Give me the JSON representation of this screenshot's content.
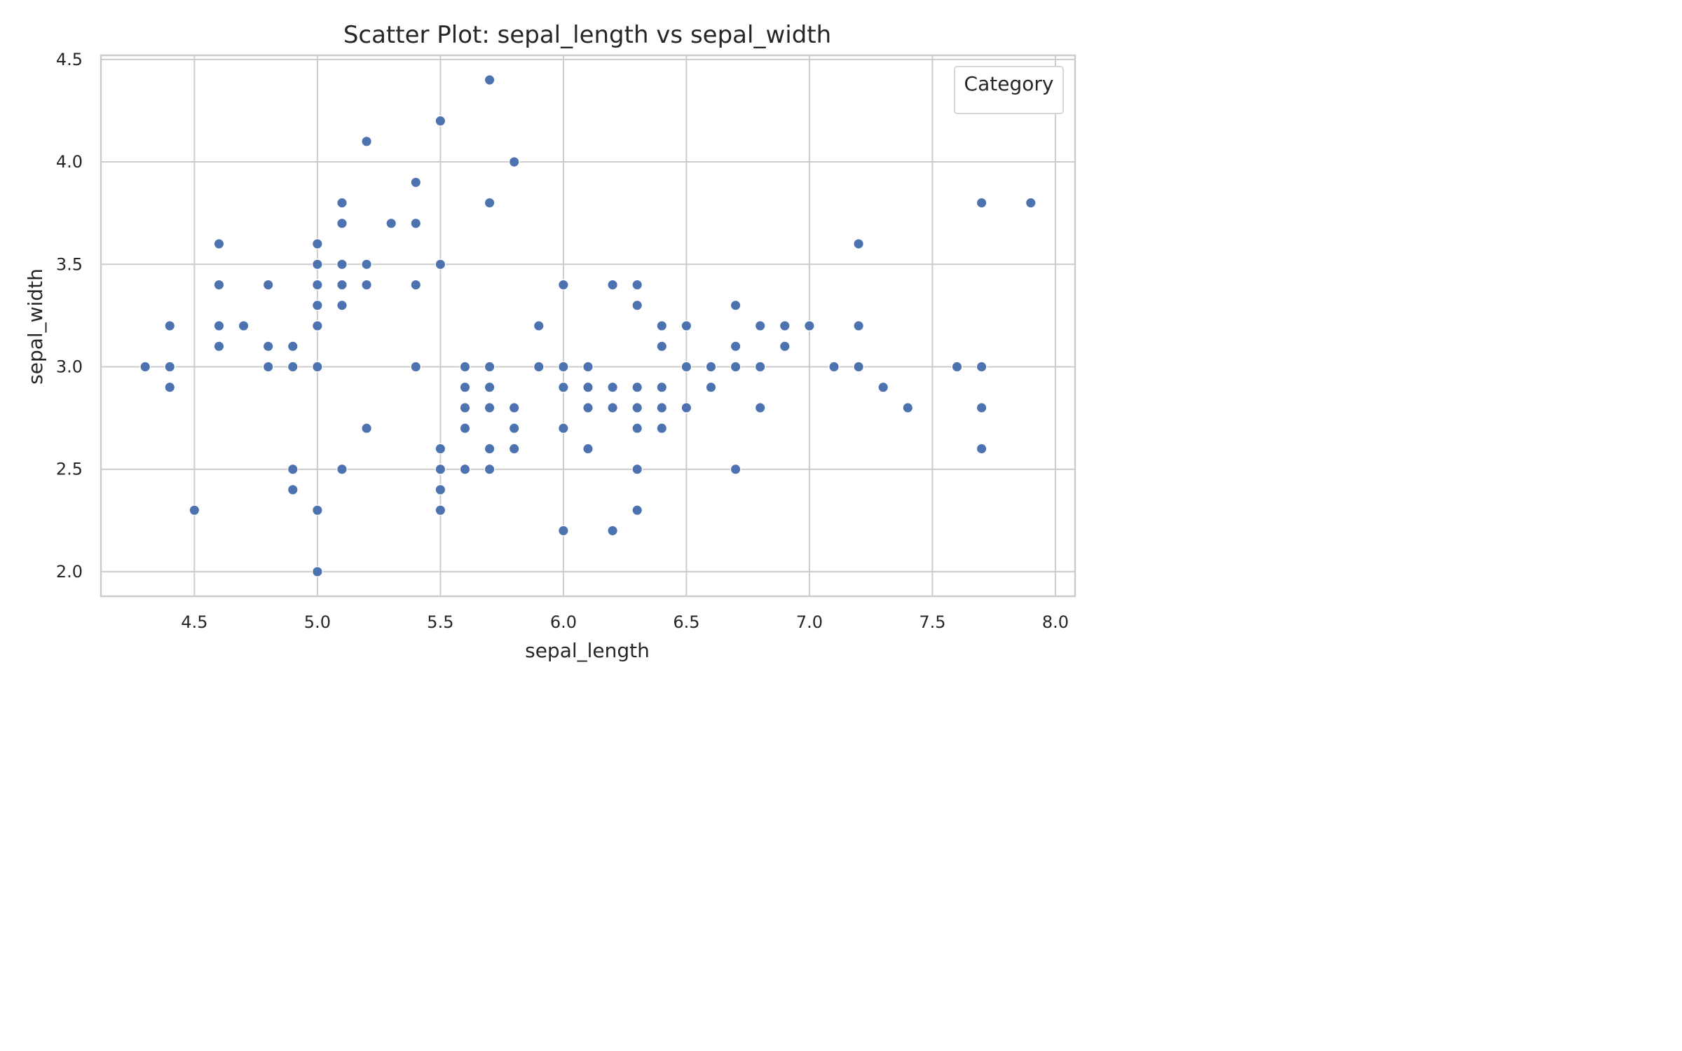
{
  "chart_data": {
    "type": "scatter",
    "title": "Scatter Plot: sepal_length vs sepal_width",
    "xlabel": "sepal_length",
    "ylabel": "sepal_width",
    "xlim": [
      4.12,
      8.08
    ],
    "ylim": [
      1.88,
      4.52
    ],
    "grid": true,
    "legend": {
      "title": "Category",
      "location": "top-right"
    },
    "colors": {
      "point": "#4C72B0",
      "grid": "#CCCCCC",
      "text": "#262626"
    },
    "x_ticks": [
      "4.5",
      "5.0",
      "5.5",
      "6.0",
      "6.5",
      "7.0",
      "7.5",
      "8.0"
    ],
    "y_ticks": [
      "2.0",
      "2.5",
      "3.0",
      "3.5",
      "4.0",
      "4.5"
    ],
    "points": [
      [
        4.3,
        3.0
      ],
      [
        4.4,
        3.2
      ],
      [
        4.4,
        3.0
      ],
      [
        4.4,
        2.9
      ],
      [
        4.5,
        2.3
      ],
      [
        4.6,
        3.6
      ],
      [
        4.6,
        3.4
      ],
      [
        4.6,
        3.2
      ],
      [
        4.6,
        3.1
      ],
      [
        4.7,
        3.2
      ],
      [
        4.8,
        3.4
      ],
      [
        4.8,
        3.1
      ],
      [
        4.8,
        3.0
      ],
      [
        4.9,
        3.1
      ],
      [
        4.9,
        3.0
      ],
      [
        4.9,
        2.5
      ],
      [
        4.9,
        2.4
      ],
      [
        5.0,
        3.6
      ],
      [
        5.0,
        3.5
      ],
      [
        5.0,
        3.4
      ],
      [
        5.0,
        3.3
      ],
      [
        5.0,
        3.2
      ],
      [
        5.0,
        3.0
      ],
      [
        5.0,
        2.3
      ],
      [
        5.0,
        2.0
      ],
      [
        5.1,
        3.8
      ],
      [
        5.1,
        3.7
      ],
      [
        5.1,
        3.5
      ],
      [
        5.1,
        3.4
      ],
      [
        5.1,
        3.3
      ],
      [
        5.1,
        2.5
      ],
      [
        5.2,
        4.1
      ],
      [
        5.2,
        3.5
      ],
      [
        5.2,
        3.4
      ],
      [
        5.2,
        2.7
      ],
      [
        5.3,
        3.7
      ],
      [
        5.4,
        3.9
      ],
      [
        5.4,
        3.7
      ],
      [
        5.4,
        3.4
      ],
      [
        5.4,
        3.0
      ],
      [
        5.5,
        4.2
      ],
      [
        5.5,
        3.5
      ],
      [
        5.5,
        2.6
      ],
      [
        5.5,
        2.5
      ],
      [
        5.5,
        2.4
      ],
      [
        5.5,
        2.3
      ],
      [
        5.6,
        3.0
      ],
      [
        5.6,
        2.9
      ],
      [
        5.6,
        2.8
      ],
      [
        5.6,
        2.7
      ],
      [
        5.6,
        2.5
      ],
      [
        5.7,
        4.4
      ],
      [
        5.7,
        3.8
      ],
      [
        5.7,
        3.0
      ],
      [
        5.7,
        2.9
      ],
      [
        5.7,
        2.8
      ],
      [
        5.7,
        2.6
      ],
      [
        5.7,
        2.5
      ],
      [
        5.8,
        4.0
      ],
      [
        5.8,
        2.8
      ],
      [
        5.8,
        2.7
      ],
      [
        5.8,
        2.6
      ],
      [
        5.9,
        3.2
      ],
      [
        5.9,
        3.0
      ],
      [
        6.0,
        3.4
      ],
      [
        6.0,
        3.0
      ],
      [
        6.0,
        2.9
      ],
      [
        6.0,
        2.7
      ],
      [
        6.0,
        2.2
      ],
      [
        6.1,
        3.0
      ],
      [
        6.1,
        2.9
      ],
      [
        6.1,
        2.8
      ],
      [
        6.1,
        2.6
      ],
      [
        6.2,
        3.4
      ],
      [
        6.2,
        2.9
      ],
      [
        6.2,
        2.8
      ],
      [
        6.2,
        2.2
      ],
      [
        6.3,
        3.4
      ],
      [
        6.3,
        3.3
      ],
      [
        6.3,
        2.9
      ],
      [
        6.3,
        2.8
      ],
      [
        6.3,
        2.7
      ],
      [
        6.3,
        2.5
      ],
      [
        6.3,
        2.3
      ],
      [
        6.4,
        3.2
      ],
      [
        6.4,
        3.1
      ],
      [
        6.4,
        2.9
      ],
      [
        6.4,
        2.8
      ],
      [
        6.4,
        2.7
      ],
      [
        6.5,
        3.2
      ],
      [
        6.5,
        3.0
      ],
      [
        6.5,
        2.8
      ],
      [
        6.6,
        3.0
      ],
      [
        6.6,
        2.9
      ],
      [
        6.7,
        3.3
      ],
      [
        6.7,
        3.1
      ],
      [
        6.7,
        3.0
      ],
      [
        6.7,
        2.5
      ],
      [
        6.8,
        3.2
      ],
      [
        6.8,
        3.0
      ],
      [
        6.8,
        2.8
      ],
      [
        6.9,
        3.2
      ],
      [
        6.9,
        3.1
      ],
      [
        7.0,
        3.2
      ],
      [
        7.1,
        3.0
      ],
      [
        7.2,
        3.6
      ],
      [
        7.2,
        3.2
      ],
      [
        7.2,
        3.0
      ],
      [
        7.3,
        2.9
      ],
      [
        7.4,
        2.8
      ],
      [
        7.6,
        3.0
      ],
      [
        7.7,
        3.8
      ],
      [
        7.7,
        3.0
      ],
      [
        7.7,
        2.8
      ],
      [
        7.7,
        2.6
      ],
      [
        7.9,
        3.8
      ]
    ]
  }
}
